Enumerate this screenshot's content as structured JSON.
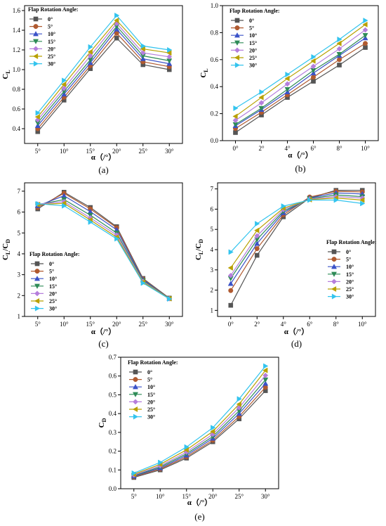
{
  "legend_title": "Flap Rotation Angle:",
  "series_names": [
    "0°",
    "5°",
    "10°",
    "15°",
    "20°",
    "25°",
    "30°"
  ],
  "series_colors": [
    "#555555",
    "#b05a30",
    "#3a52c8",
    "#2e8b57",
    "#b57edc",
    "#b8a000",
    "#33c4ee"
  ],
  "series_markers": [
    "square",
    "circle",
    "triangle-up",
    "triangle-down",
    "diamond",
    "triangle-left",
    "triangle-right"
  ],
  "chart_data": [
    {
      "type": "line",
      "caption": "(a)",
      "ylabel_main": "C",
      "ylabel_sub": "L",
      "xlabel": "α（/°）",
      "categories": [
        "5°",
        "10°",
        "15°",
        "20°",
        "25°",
        "30°"
      ],
      "x": [
        5,
        10,
        15,
        20,
        25,
        30
      ],
      "xlim": [
        2.5,
        32.5
      ],
      "ylim": [
        0.25,
        1.65
      ],
      "yticks": [
        0.4,
        0.6,
        0.8,
        1.0,
        1.2,
        1.4,
        1.6
      ],
      "yticklabels": [
        "0.4",
        "0.6",
        "0.8",
        "1.0",
        "1.2",
        "1.4",
        "1.6"
      ],
      "legend_position": "top-left",
      "series": [
        {
          "name": "0°",
          "values": [
            0.37,
            0.69,
            1.01,
            1.32,
            1.05,
            1.0
          ]
        },
        {
          "name": "5°",
          "values": [
            0.4,
            0.72,
            1.04,
            1.37,
            1.08,
            1.03
          ]
        },
        {
          "name": "10°",
          "values": [
            0.43,
            0.75,
            1.07,
            1.41,
            1.11,
            1.06
          ]
        },
        {
          "name": "15°",
          "values": [
            0.46,
            0.78,
            1.1,
            1.44,
            1.14,
            1.09
          ]
        },
        {
          "name": "20°",
          "values": [
            0.49,
            0.81,
            1.14,
            1.47,
            1.17,
            1.13
          ]
        },
        {
          "name": "25°",
          "values": [
            0.52,
            0.85,
            1.18,
            1.5,
            1.21,
            1.17
          ]
        },
        {
          "name": "30°",
          "values": [
            0.56,
            0.89,
            1.23,
            1.55,
            1.24,
            1.2
          ]
        }
      ]
    },
    {
      "type": "line",
      "caption": "(b)",
      "ylabel_main": "C",
      "ylabel_sub": "L",
      "xlabel": "α（/°）",
      "categories": [
        "0°",
        "2°",
        "4°",
        "6°",
        "8°",
        "10°"
      ],
      "x": [
        0,
        2,
        4,
        6,
        8,
        10
      ],
      "xlim": [
        -1,
        11
      ],
      "ylim": [
        0,
        1.0
      ],
      "yticks": [
        0,
        0.2,
        0.4,
        0.6,
        0.8,
        1.0
      ],
      "yticklabels": [
        "0.0",
        "0.2",
        "0.4",
        "0.6",
        "0.8",
        "1.0"
      ],
      "legend_position": "top-left",
      "series": [
        {
          "name": "0°",
          "values": [
            0.06,
            0.19,
            0.32,
            0.44,
            0.56,
            0.69
          ]
        },
        {
          "name": "5°",
          "values": [
            0.09,
            0.21,
            0.34,
            0.47,
            0.6,
            0.72
          ]
        },
        {
          "name": "10°",
          "values": [
            0.11,
            0.23,
            0.36,
            0.5,
            0.63,
            0.76
          ]
        },
        {
          "name": "15°",
          "values": [
            0.12,
            0.24,
            0.38,
            0.52,
            0.64,
            0.78
          ]
        },
        {
          "name": "20°",
          "values": [
            0.15,
            0.28,
            0.42,
            0.55,
            0.68,
            0.82
          ]
        },
        {
          "name": "25°",
          "values": [
            0.18,
            0.32,
            0.46,
            0.59,
            0.72,
            0.86
          ]
        },
        {
          "name": "30°",
          "values": [
            0.24,
            0.36,
            0.49,
            0.62,
            0.75,
            0.89
          ]
        }
      ]
    },
    {
      "type": "line",
      "caption": "(c)",
      "ylabel_main": "C",
      "ylabel_sub": "L",
      "ylabel_main2": "/C",
      "ylabel_sub2": "D",
      "xlabel": "α（/°）",
      "categories": [
        "5°",
        "10°",
        "15°",
        "20°",
        "25°",
        "30°"
      ],
      "x": [
        5,
        10,
        15,
        20,
        25,
        30
      ],
      "xlim": [
        2.5,
        32.5
      ],
      "ylim": [
        1,
        7.4
      ],
      "yticks": [
        1,
        2,
        3,
        4,
        5,
        6,
        7
      ],
      "yticklabels": [
        "1",
        "2",
        "3",
        "4",
        "5",
        "6",
        "7"
      ],
      "legend_position": "bottom-left",
      "series": [
        {
          "name": "0°",
          "values": [
            6.15,
            6.95,
            6.22,
            5.3,
            2.82,
            1.88
          ]
        },
        {
          "name": "5°",
          "values": [
            6.22,
            6.9,
            6.15,
            5.25,
            2.79,
            1.87
          ]
        },
        {
          "name": "10°",
          "values": [
            6.3,
            6.78,
            6.02,
            5.15,
            2.76,
            1.86
          ]
        },
        {
          "name": "15°",
          "values": [
            6.35,
            6.6,
            5.85,
            5.0,
            2.72,
            1.86
          ]
        },
        {
          "name": "20°",
          "values": [
            6.38,
            6.5,
            5.72,
            4.9,
            2.68,
            1.85
          ]
        },
        {
          "name": "25°",
          "values": [
            6.36,
            6.42,
            5.62,
            4.8,
            2.64,
            1.85
          ]
        },
        {
          "name": "30°",
          "values": [
            6.4,
            6.3,
            5.52,
            4.72,
            2.6,
            1.84
          ]
        }
      ]
    },
    {
      "type": "line",
      "caption": "(d)",
      "ylabel_main": "C",
      "ylabel_sub": "L",
      "ylabel_main2": "/C",
      "ylabel_sub2": "D",
      "xlabel": "α（/°）",
      "categories": [
        "0°",
        "2°",
        "4°",
        "6°",
        "8°",
        "10°"
      ],
      "x": [
        0,
        2,
        4,
        6,
        8,
        10
      ],
      "xlim": [
        -1,
        11
      ],
      "ylim": [
        0.7,
        7.3
      ],
      "yticks": [
        1,
        2,
        3,
        4,
        5,
        6,
        7
      ],
      "yticklabels": [
        "1",
        "2",
        "3",
        "4",
        "5",
        "6",
        "7"
      ],
      "legend_position": "right",
      "series": [
        {
          "name": "0°",
          "values": [
            1.25,
            3.72,
            5.62,
            6.55,
            6.93,
            6.93
          ]
        },
        {
          "name": "5°",
          "values": [
            1.98,
            4.05,
            5.72,
            6.6,
            6.88,
            6.85
          ]
        },
        {
          "name": "10°",
          "values": [
            2.32,
            4.3,
            5.82,
            6.55,
            6.8,
            6.75
          ]
        },
        {
          "name": "15°",
          "values": [
            2.58,
            4.5,
            5.9,
            6.52,
            6.7,
            6.62
          ]
        },
        {
          "name": "20°",
          "values": [
            2.72,
            4.68,
            5.98,
            6.5,
            6.62,
            6.55
          ]
        },
        {
          "name": "25°",
          "values": [
            3.1,
            4.95,
            6.05,
            6.47,
            6.55,
            6.45
          ]
        },
        {
          "name": "30°",
          "values": [
            3.88,
            5.28,
            6.15,
            6.45,
            6.45,
            6.28
          ]
        }
      ]
    },
    {
      "type": "line",
      "caption": "(e)",
      "ylabel_main": "C",
      "ylabel_sub": "D",
      "xlabel": "α（/°）",
      "categories": [
        "5°",
        "10°",
        "15°",
        "20°",
        "25°",
        "30°"
      ],
      "x": [
        5,
        10,
        15,
        20,
        25,
        30
      ],
      "xlim": [
        2.5,
        32.5
      ],
      "ylim": [
        0,
        0.7
      ],
      "yticks": [
        0,
        0.1,
        0.2,
        0.3,
        0.4,
        0.5,
        0.6,
        0.7
      ],
      "yticklabels": [
        "0.0",
        "0.1",
        "0.2",
        "0.3",
        "0.4",
        "0.5",
        "0.6",
        "0.7"
      ],
      "legend_position": "top-left",
      "series": [
        {
          "name": "0°",
          "values": [
            0.06,
            0.1,
            0.163,
            0.25,
            0.372,
            0.522
          ]
        },
        {
          "name": "5°",
          "values": [
            0.064,
            0.105,
            0.17,
            0.258,
            0.385,
            0.54
          ]
        },
        {
          "name": "10°",
          "values": [
            0.067,
            0.11,
            0.178,
            0.268,
            0.4,
            0.56
          ]
        },
        {
          "name": "15°",
          "values": [
            0.07,
            0.116,
            0.186,
            0.278,
            0.415,
            0.58
          ]
        },
        {
          "name": "20°",
          "values": [
            0.073,
            0.122,
            0.195,
            0.29,
            0.432,
            0.603
          ]
        },
        {
          "name": "25°",
          "values": [
            0.077,
            0.13,
            0.207,
            0.305,
            0.45,
            0.63
          ]
        },
        {
          "name": "30°",
          "values": [
            0.083,
            0.14,
            0.222,
            0.325,
            0.478,
            0.653
          ]
        }
      ]
    }
  ]
}
